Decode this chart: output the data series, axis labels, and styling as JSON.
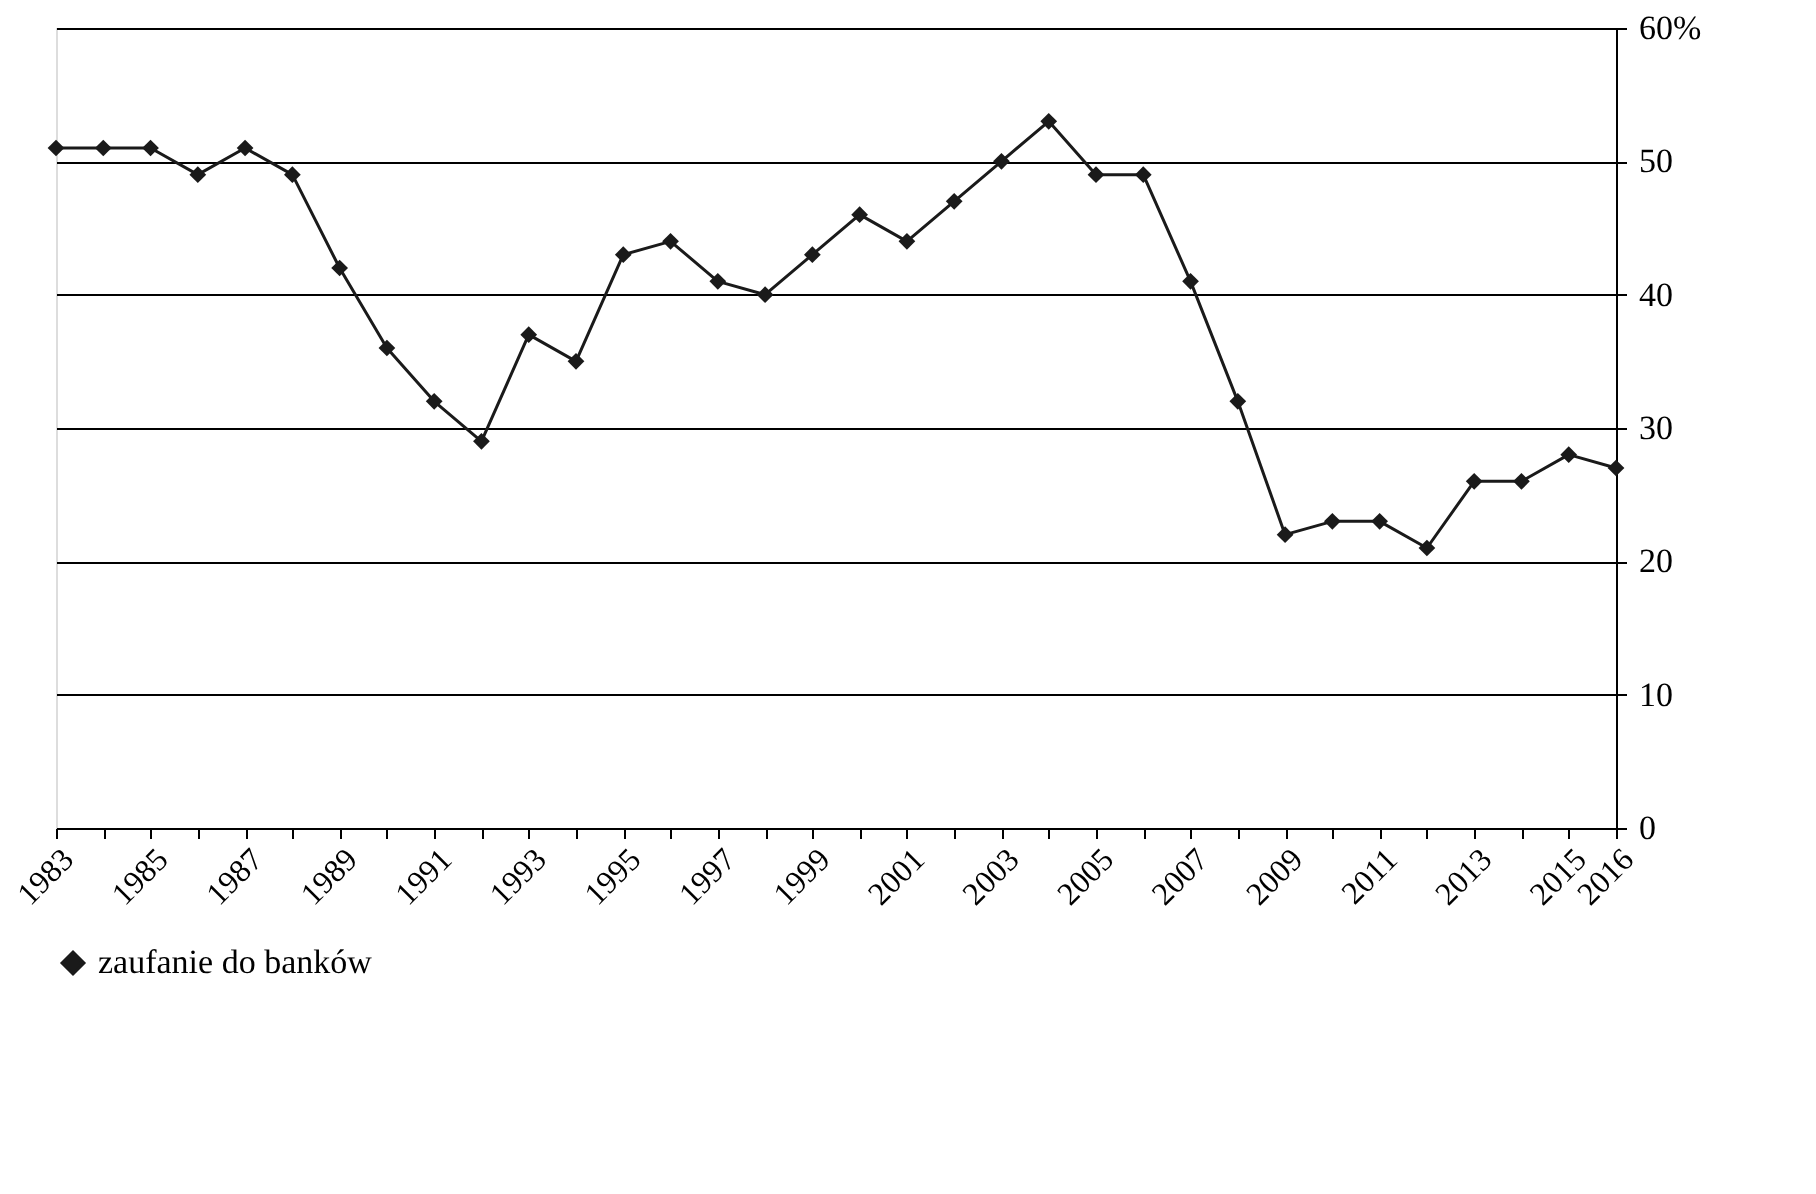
{
  "chart_data": {
    "type": "line",
    "categories": [
      "1983",
      null,
      "1985",
      null,
      "1987",
      null,
      "1989",
      null,
      "1991",
      null,
      "1993",
      null,
      "1995",
      null,
      "1997",
      null,
      "1999",
      null,
      "2001",
      null,
      "2003",
      null,
      "2005",
      null,
      "2007",
      null,
      "2009",
      null,
      "2011",
      null,
      "2013",
      null,
      "2015",
      "2016"
    ],
    "series": [
      {
        "name": "zaufanie do banków",
        "color": "#1a1a1a",
        "values": [
          51,
          51,
          51,
          49,
          51,
          49,
          42,
          36,
          32,
          29,
          37,
          35,
          43,
          44,
          41,
          40,
          43,
          46,
          44,
          47,
          50,
          53,
          49,
          49,
          41,
          32,
          22,
          23,
          23,
          21,
          26,
          26,
          28,
          27
        ]
      }
    ],
    "ylim": [
      0,
      60
    ],
    "yticks": [
      0,
      10,
      20,
      30,
      40,
      50,
      {
        "value": 60,
        "label": "60%"
      }
    ],
    "grid": "y",
    "legend": "bottom",
    "marker": "diamond",
    "line_style": "solid"
  }
}
